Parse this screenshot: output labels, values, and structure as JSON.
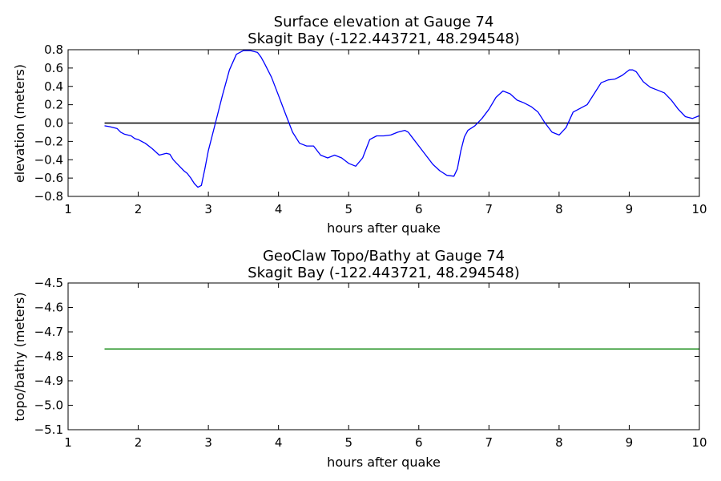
{
  "chart_data": [
    {
      "type": "line",
      "title_line1": "Surface elevation at Gauge 74",
      "title_line2": "Skagit Bay  (-122.443721, 48.294548)",
      "xlabel": "hours after quake",
      "ylabel": "elevation (meters)",
      "xlim": [
        1,
        10
      ],
      "ylim": [
        -0.8,
        0.8
      ],
      "xticks": [
        "1",
        "2",
        "3",
        "4",
        "5",
        "6",
        "7",
        "8",
        "9",
        "10"
      ],
      "yticks": [
        "0.8",
        "0.6",
        "0.4",
        "0.2",
        "0.0",
        "−0.2",
        "−0.4",
        "−0.6",
        "−0.8"
      ],
      "colors": {
        "series": "#0000ff",
        "reference": "#000000"
      },
      "reference_line": {
        "y": 0.0,
        "x": [
          1.52,
          10.0
        ]
      },
      "series": [
        {
          "x": [
            1.52,
            1.6,
            1.7,
            1.75,
            1.8,
            1.85,
            1.9,
            1.95,
            2.0,
            2.05,
            2.1,
            2.2,
            2.3,
            2.4,
            2.45,
            2.5,
            2.6,
            2.65,
            2.7,
            2.75,
            2.8,
            2.85,
            2.9,
            2.95,
            3.0,
            3.05,
            3.1,
            3.2,
            3.3,
            3.4,
            3.5,
            3.6,
            3.7,
            3.75,
            3.8,
            3.9,
            4.0,
            4.1,
            4.2,
            4.3,
            4.4,
            4.5,
            4.6,
            4.7,
            4.8,
            4.9,
            5.0,
            5.1,
            5.2,
            5.3,
            5.4,
            5.5,
            5.6,
            5.7,
            5.8,
            5.85,
            5.9,
            6.0,
            6.1,
            6.2,
            6.3,
            6.4,
            6.5,
            6.55,
            6.6,
            6.65,
            6.7,
            6.8,
            6.9,
            7.0,
            7.1,
            7.2,
            7.3,
            7.4,
            7.5,
            7.6,
            7.7,
            7.8,
            7.9,
            8.0,
            8.1,
            8.2,
            8.3,
            8.4,
            8.5,
            8.6,
            8.7,
            8.8,
            8.9,
            9.0,
            9.05,
            9.1,
            9.2,
            9.3,
            9.4,
            9.5,
            9.6,
            9.7,
            9.8,
            9.9,
            10.0
          ],
          "y": [
            -0.03,
            -0.04,
            -0.06,
            -0.1,
            -0.12,
            -0.13,
            -0.14,
            -0.17,
            -0.18,
            -0.2,
            -0.22,
            -0.28,
            -0.35,
            -0.33,
            -0.34,
            -0.4,
            -0.48,
            -0.52,
            -0.55,
            -0.6,
            -0.66,
            -0.7,
            -0.68,
            -0.5,
            -0.3,
            -0.15,
            0.0,
            0.3,
            0.58,
            0.75,
            0.79,
            0.79,
            0.77,
            0.72,
            0.65,
            0.5,
            0.3,
            0.1,
            -0.1,
            -0.22,
            -0.25,
            -0.25,
            -0.35,
            -0.38,
            -0.35,
            -0.38,
            -0.44,
            -0.47,
            -0.38,
            -0.18,
            -0.14,
            -0.14,
            -0.13,
            -0.1,
            -0.08,
            -0.1,
            -0.15,
            -0.25,
            -0.35,
            -0.45,
            -0.52,
            -0.57,
            -0.58,
            -0.5,
            -0.3,
            -0.15,
            -0.08,
            -0.03,
            0.05,
            0.15,
            0.28,
            0.35,
            0.32,
            0.25,
            0.22,
            0.18,
            0.12,
            0.0,
            -0.1,
            -0.13,
            -0.05,
            0.12,
            0.16,
            0.2,
            0.32,
            0.44,
            0.47,
            0.48,
            0.52,
            0.58,
            0.58,
            0.56,
            0.45,
            0.39,
            0.36,
            0.33,
            0.25,
            0.15,
            0.07,
            0.05,
            0.08
          ]
        }
      ]
    },
    {
      "type": "line",
      "title_line1": "GeoClaw Topo/Bathy at Gauge 74",
      "title_line2": "Skagit Bay  (-122.443721, 48.294548)",
      "xlabel": "hours after quake",
      "ylabel": "topo/bathy (meters)",
      "xlim": [
        1,
        10
      ],
      "ylim": [
        -5.1,
        -4.5
      ],
      "xticks": [
        "1",
        "2",
        "3",
        "4",
        "5",
        "6",
        "7",
        "8",
        "9",
        "10"
      ],
      "yticks": [
        "−4.5",
        "−4.6",
        "−4.7",
        "−4.8",
        "−4.9",
        "−5.0",
        "−5.1"
      ],
      "colors": {
        "series": "#008000"
      },
      "series": [
        {
          "x": [
            1.52,
            10.0
          ],
          "y": [
            -4.77,
            -4.77
          ]
        }
      ]
    }
  ]
}
